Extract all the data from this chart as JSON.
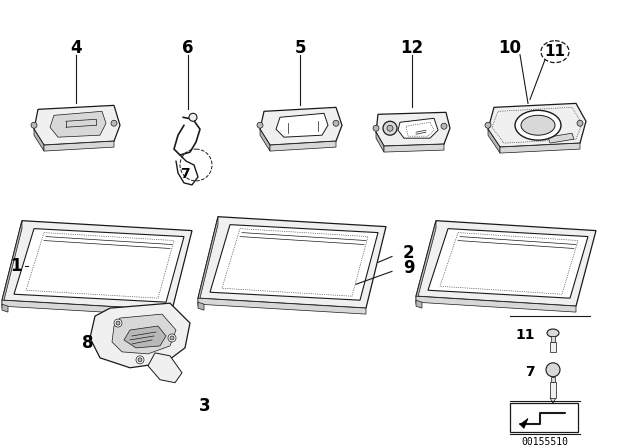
{
  "background_color": "#ffffff",
  "part_number": "00155510",
  "text_color": "#000000",
  "line_color": "#1a1a1a",
  "fill_light": "#f0f0f0",
  "fill_mid": "#d8d8d8",
  "fill_dark": "#b8b8b8",
  "lw_main": 0.9,
  "lw_thin": 0.5,
  "font_size_label": 10,
  "font_size_num": 7
}
